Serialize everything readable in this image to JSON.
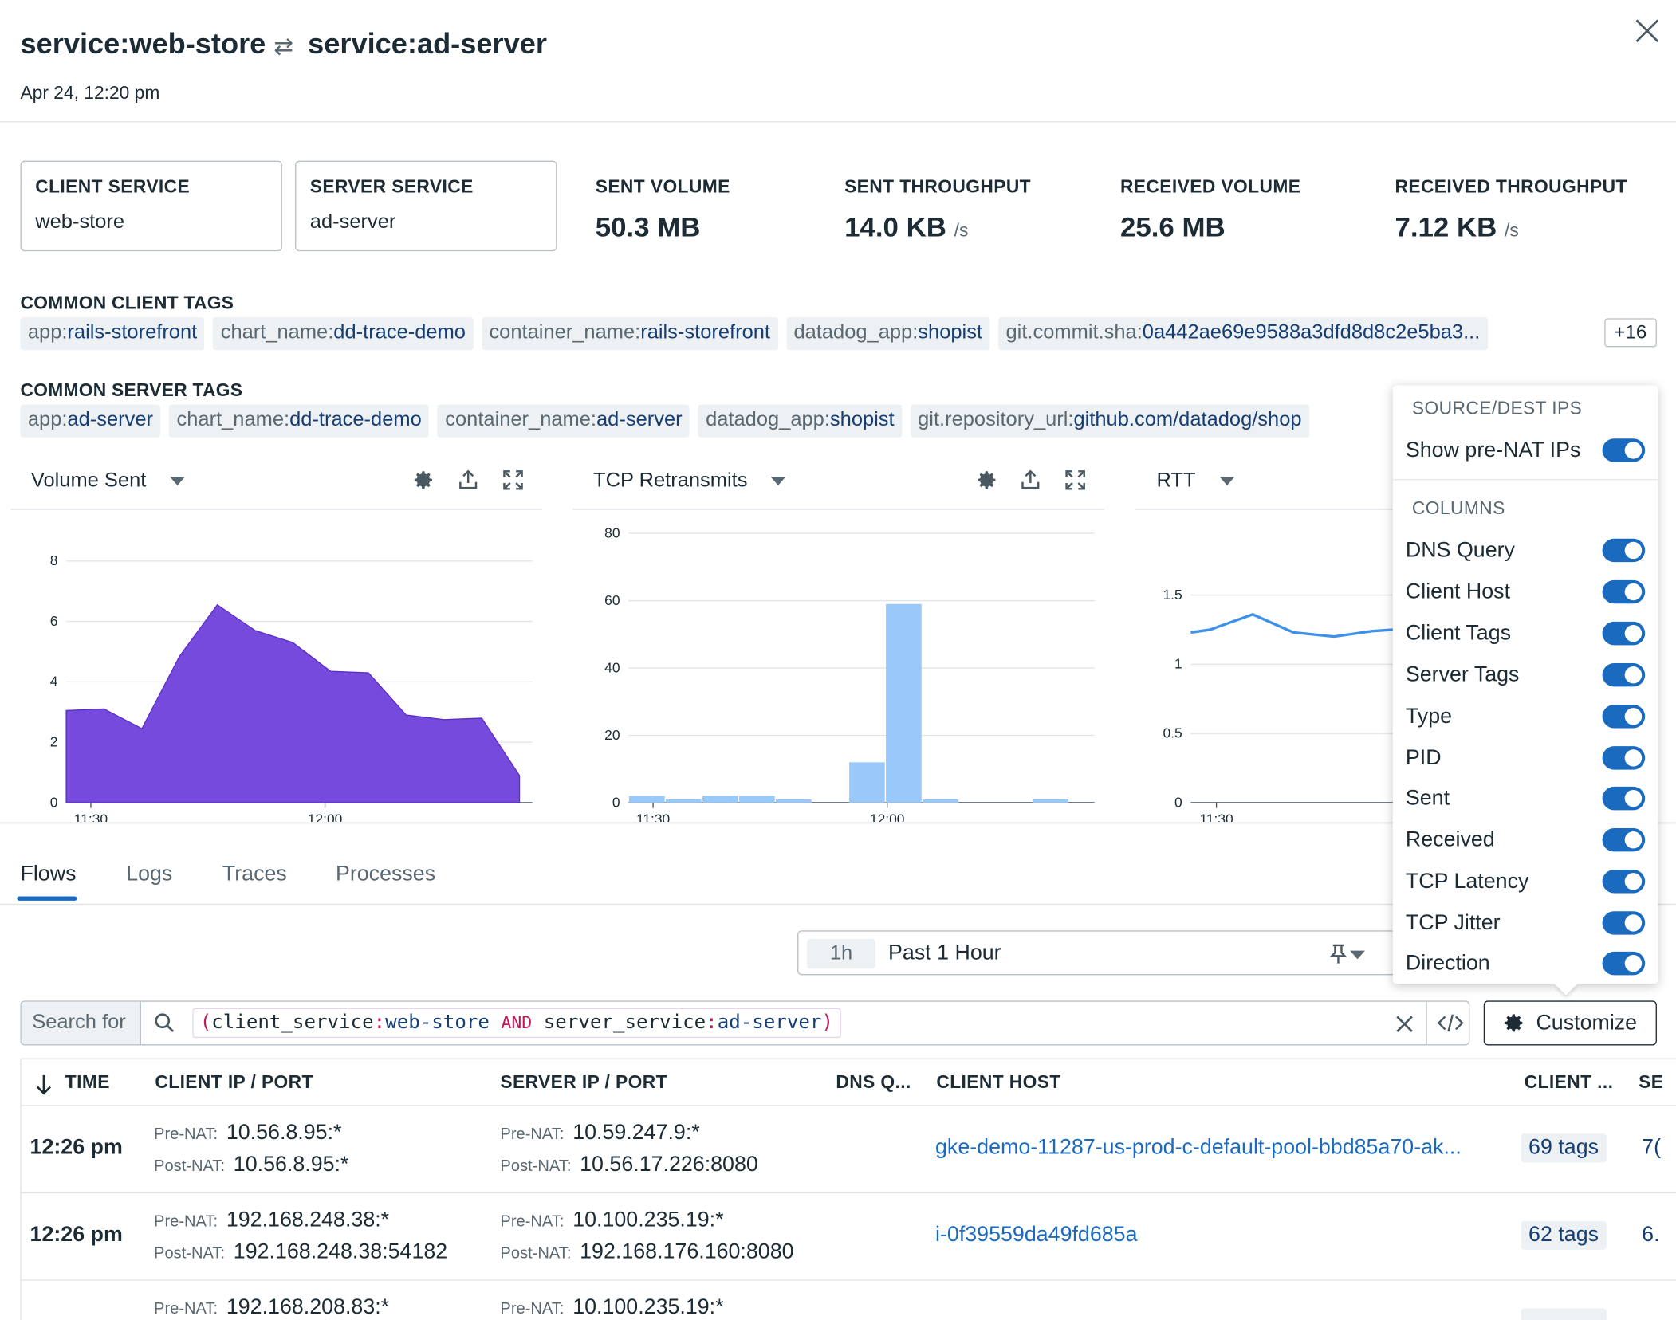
{
  "header": {
    "client_title": "service:web-store",
    "swap_symbol": "⇄",
    "server_title": "service:ad-server",
    "timestamp": "Apr 24, 12:20 pm"
  },
  "summary": {
    "client_service_label": "CLIENT SERVICE",
    "client_service_value": "web-store",
    "server_service_label": "SERVER SERVICE",
    "server_service_value": "ad-server",
    "metrics": [
      {
        "label": "SENT VOLUME",
        "value": "50.3 MB",
        "unit": ""
      },
      {
        "label": "SENT THROUGHPUT",
        "value": "14.0 KB",
        "unit": "/s"
      },
      {
        "label": "RECEIVED VOLUME",
        "value": "25.6 MB",
        "unit": ""
      },
      {
        "label": "RECEIVED THROUGHPUT",
        "value": "7.12 KB",
        "unit": "/s"
      }
    ]
  },
  "client_tags": {
    "label": "COMMON CLIENT TAGS",
    "tags": [
      {
        "key": "app:",
        "value": "rails-storefront"
      },
      {
        "key": "chart_name:",
        "value": "dd-trace-demo"
      },
      {
        "key": "container_name:",
        "value": "rails-storefront"
      },
      {
        "key": "datadog_app:",
        "value": "shopist"
      },
      {
        "key": "git.commit.sha:",
        "value": "0a442ae69e9588a3dfd8d8c2e5ba3..."
      }
    ],
    "more": "+16"
  },
  "server_tags": {
    "label": "COMMON SERVER TAGS",
    "tags": [
      {
        "key": "app:",
        "value": "ad-server"
      },
      {
        "key": "chart_name:",
        "value": "dd-trace-demo"
      },
      {
        "key": "container_name:",
        "value": "ad-server"
      },
      {
        "key": "datadog_app:",
        "value": "shopist"
      },
      {
        "key": "git.repository_url:",
        "value": "github.com/datadog/shop"
      }
    ]
  },
  "panels": [
    {
      "title": "Volume Sent"
    },
    {
      "title": "TCP Retransmits"
    },
    {
      "title": "RTT"
    }
  ],
  "chart_data": [
    {
      "type": "area",
      "title": "Volume Sent",
      "xlabel": "",
      "ylabel": "",
      "x_ticks": [
        "11:30",
        "12:00"
      ],
      "y_ticks": [
        "0",
        "2",
        "4",
        "6",
        "8"
      ],
      "ylim": [
        0,
        8.6
      ],
      "color": "#774ade",
      "values": [
        3.05,
        3.1,
        2.45,
        4.85,
        6.55,
        5.7,
        5.3,
        4.35,
        4.3,
        2.9,
        2.75,
        2.8,
        0.9
      ]
    },
    {
      "type": "bar",
      "title": "TCP Retransmits",
      "xlabel": "",
      "ylabel": "",
      "x_ticks": [
        "11:30",
        "12:00"
      ],
      "y_ticks": [
        "0",
        "20",
        "40",
        "60",
        "80"
      ],
      "ylim": [
        0,
        80
      ],
      "color": "#99c8fb",
      "values": [
        2,
        1,
        2,
        2,
        1,
        0,
        12,
        59,
        1,
        0,
        0,
        1
      ]
    },
    {
      "type": "line",
      "title": "RTT",
      "xlabel": "",
      "ylabel": "",
      "x_ticks": [
        "11:30"
      ],
      "y_ticks": [
        "0",
        "0.5",
        "1",
        "1.5"
      ],
      "ylim": [
        0,
        1.8
      ],
      "color": "#3d91e8",
      "values": [
        1.23,
        1.25,
        1.36,
        1.23,
        1.2,
        1.24,
        1.25
      ]
    }
  ],
  "tabs": [
    "Flows",
    "Logs",
    "Traces",
    "Processes"
  ],
  "time_range": {
    "short": "1h",
    "label": "Past 1 Hour"
  },
  "search": {
    "prefix": "Search for",
    "open_paren": "(",
    "key1": "client_service",
    "colon": ":",
    "val1": "web-store",
    "op": "AND",
    "key2": "server_service",
    "val2": "ad-server",
    "close_paren": ")"
  },
  "customize_label": "Customize",
  "table": {
    "headers": [
      "TIME",
      "CLIENT IP / PORT",
      "SERVER IP / PORT",
      "DNS Q...",
      "CLIENT HOST",
      "CLIENT ...",
      "SE"
    ],
    "pre_nat_label": "Pre-NAT:",
    "post_nat_label": "Post-NAT:",
    "rows": [
      {
        "time": "12:26 pm",
        "client_pre": "10.56.8.95:*",
        "client_post": "10.56.8.95:*",
        "server_pre": "10.59.247.9:*",
        "server_post": "10.56.17.226:8080",
        "client_host": "gke-demo-11287-us-prod-c-default-pool-bbd85a70-ak...",
        "client_tags": "69 tags",
        "server_cut": "7("
      },
      {
        "time": "12:26 pm",
        "client_pre": "192.168.248.38:*",
        "client_post": "192.168.248.38:54182",
        "server_pre": "10.100.235.19:*",
        "server_post": "192.168.176.160:8080",
        "client_host": "i-0f39559da49fd685a",
        "client_tags": "62 tags",
        "server_cut": "6."
      },
      {
        "time": "",
        "client_pre": "192.168.208.83:*",
        "client_post": "",
        "server_pre": "10.100.235.19:*",
        "server_post": "",
        "client_host": "",
        "client_tags": "",
        "server_cut": ""
      }
    ]
  },
  "dropdown": {
    "source_header": "SOURCE/DEST IPS",
    "pre_nat": {
      "label": "Show pre-NAT IPs",
      "on": true
    },
    "columns_header": "COLUMNS",
    "columns": [
      {
        "label": "DNS Query",
        "on": true
      },
      {
        "label": "Client Host",
        "on": true
      },
      {
        "label": "Client Tags",
        "on": true
      },
      {
        "label": "Server Tags",
        "on": true
      },
      {
        "label": "Type",
        "on": true
      },
      {
        "label": "PID",
        "on": true
      },
      {
        "label": "Sent",
        "on": true
      },
      {
        "label": "Received",
        "on": true
      },
      {
        "label": "TCP Latency",
        "on": true
      },
      {
        "label": "TCP Jitter",
        "on": true
      },
      {
        "label": "Direction",
        "on": true
      }
    ]
  }
}
